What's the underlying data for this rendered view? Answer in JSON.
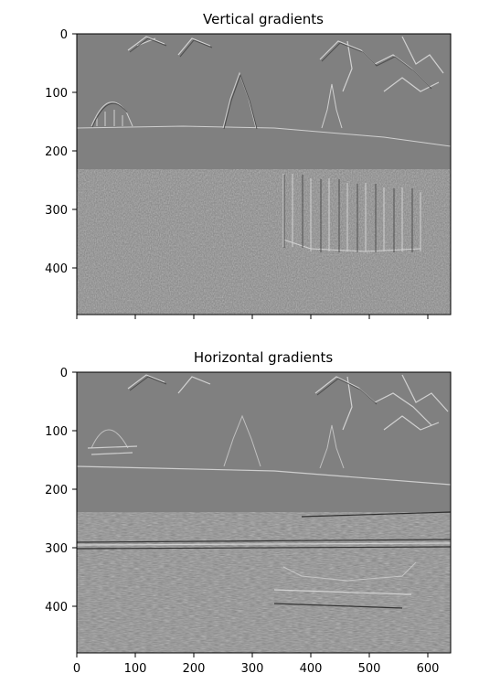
{
  "figure": {
    "panels": [
      {
        "title": "Vertical gradients",
        "image": "grayscale vertical-gradient map of a riverside city skyline with domed building, gothic towers, foreground tree branches and reflections in water",
        "x_ticks": [],
        "y_ticks": [
          "0",
          "100",
          "200",
          "300",
          "400"
        ],
        "xlim": [
          0,
          640
        ],
        "ylim": [
          480,
          0
        ]
      },
      {
        "title": "Horizontal gradients",
        "image": "grayscale horizontal-gradient map of the same riverside city skyline, showing horizontal edges of water ripples, boats and rooftops",
        "x_ticks": [
          "0",
          "100",
          "200",
          "300",
          "400",
          "500",
          "600"
        ],
        "y_ticks": [
          "0",
          "100",
          "200",
          "300",
          "400"
        ],
        "xlim": [
          0,
          640
        ],
        "ylim": [
          480,
          0
        ]
      }
    ],
    "colors": {
      "background": "#ffffff",
      "image_gray": "#808080",
      "axes": "#000000"
    }
  }
}
